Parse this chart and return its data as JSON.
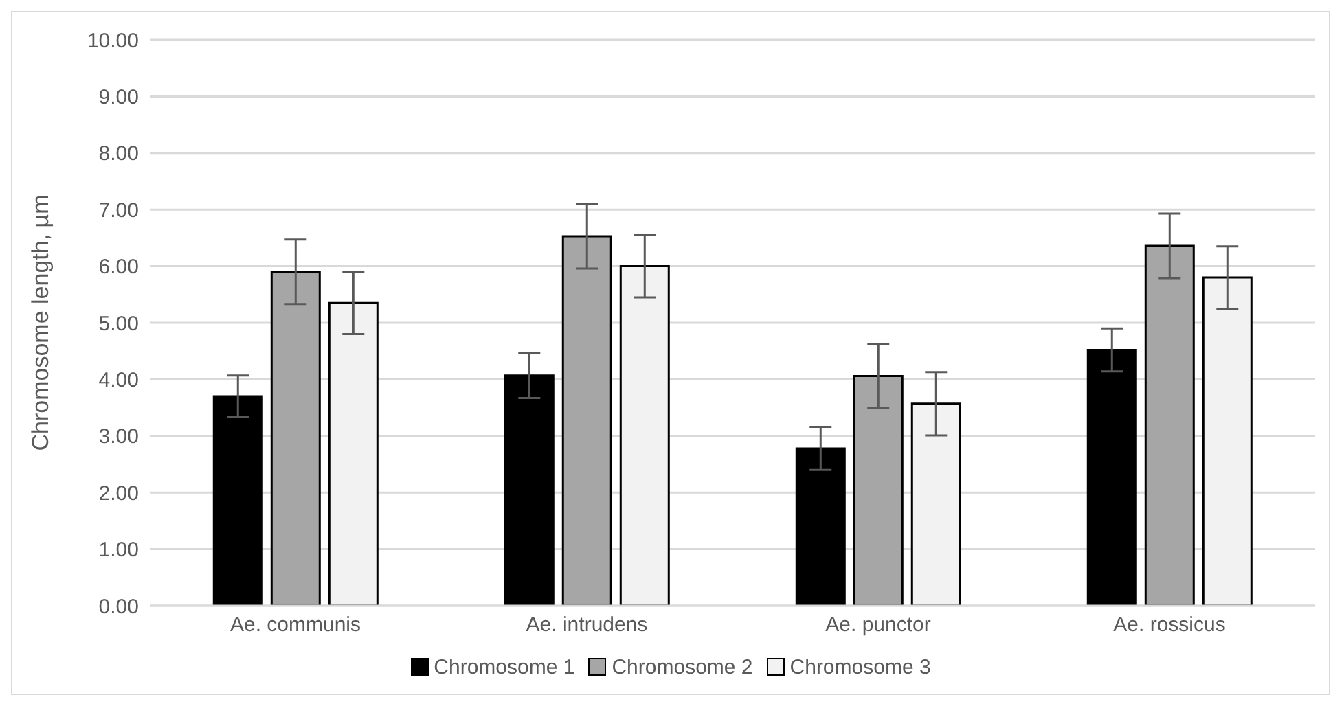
{
  "chart_data": {
    "type": "bar",
    "ylabel": "Chromosome length, µm",
    "categories": [
      "Ae. communis",
      "Ae. intrudens",
      "Ae. punctor",
      "Ae. rossicus"
    ],
    "series": [
      {
        "name": "Chromosome 1",
        "color": "#000000",
        "values": [
          3.7,
          4.07,
          2.78,
          4.52
        ],
        "errors": [
          0.37,
          0.4,
          0.38,
          0.38
        ]
      },
      {
        "name": "Chromosome 2",
        "color": "#a6a6a6",
        "values": [
          5.9,
          6.53,
          4.06,
          6.36
        ],
        "errors": [
          0.57,
          0.57,
          0.57,
          0.57
        ]
      },
      {
        "name": "Chromosome 3",
        "color": "#f2f2f2",
        "values": [
          5.35,
          6.0,
          3.57,
          5.8
        ],
        "errors": [
          0.55,
          0.55,
          0.56,
          0.55
        ]
      }
    ],
    "ylim": [
      0,
      10
    ],
    "yticks": [
      {
        "value": 0,
        "label": "0.00"
      },
      {
        "value": 1,
        "label": "1.00"
      },
      {
        "value": 2,
        "label": "2.00"
      },
      {
        "value": 3,
        "label": "3.00"
      },
      {
        "value": 4,
        "label": "4.00"
      },
      {
        "value": 5,
        "label": "5.00"
      },
      {
        "value": 6,
        "label": "6.00"
      },
      {
        "value": 7,
        "label": "7.00"
      },
      {
        "value": 8,
        "label": "8.00"
      },
      {
        "value": 9,
        "label": "9.00"
      },
      {
        "value": 10,
        "label": "10.00"
      }
    ],
    "grid": "y",
    "legend": "bottom"
  }
}
